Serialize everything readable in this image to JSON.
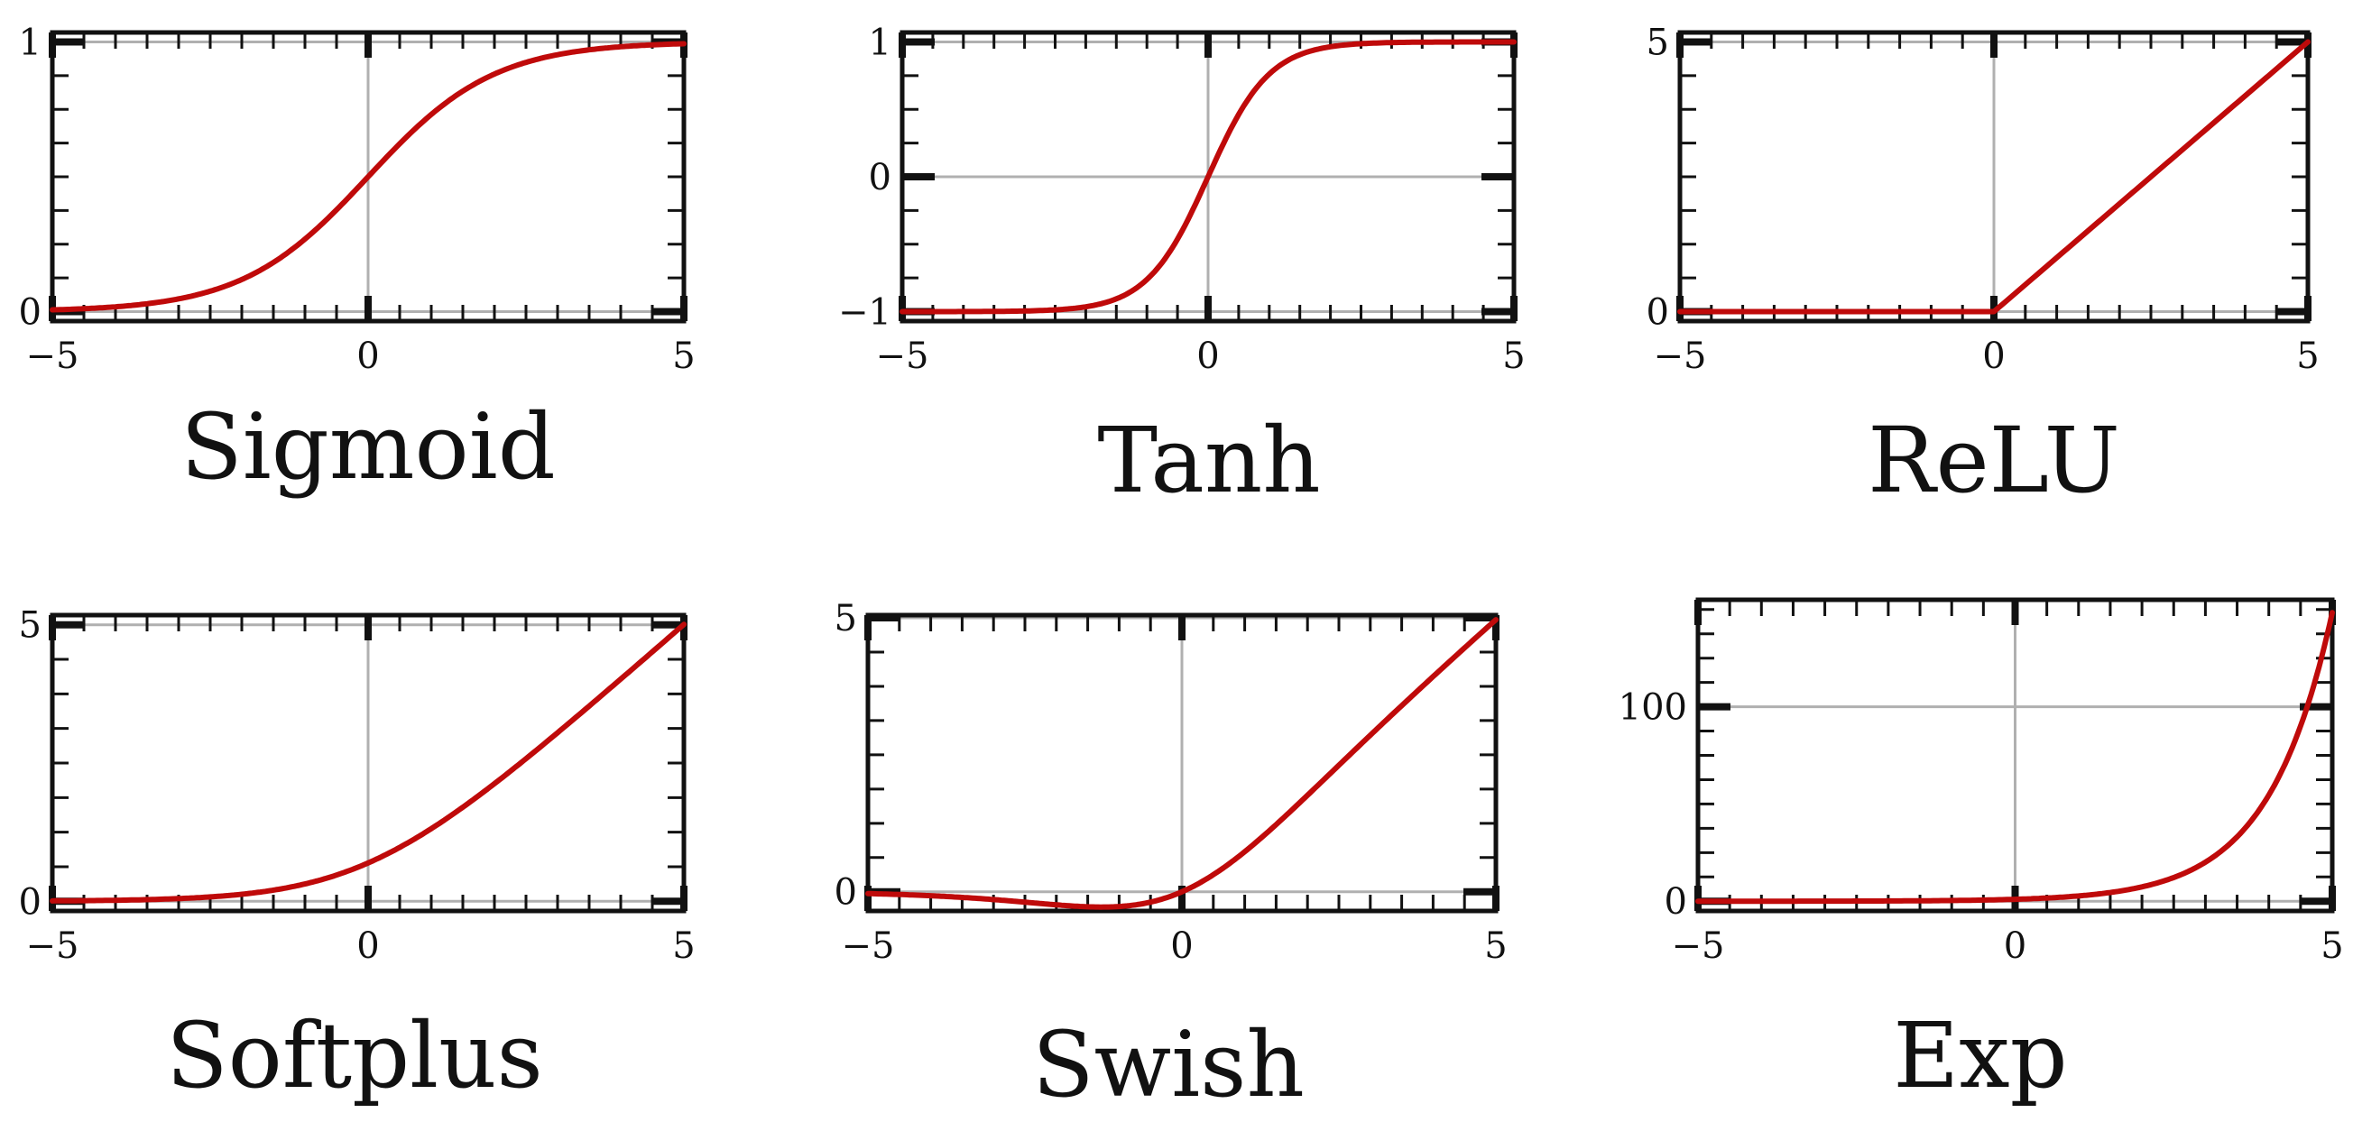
{
  "colors": {
    "curve": "#bf0a0a"
  },
  "chart_data": [
    {
      "type": "line",
      "title": "Sigmoid",
      "function": "sigmoid",
      "xlim": [
        -5,
        5
      ],
      "ylim": [
        -0.035,
        1.035
      ],
      "xticks": [
        {
          "value": -5,
          "label": "−5"
        },
        {
          "value": 0,
          "label": "0"
        },
        {
          "value": 5,
          "label": "5"
        }
      ],
      "yticks": [
        {
          "value": 0,
          "label": "0"
        },
        {
          "value": 1,
          "label": "1"
        }
      ],
      "yminor_step": 0.125,
      "series": [
        {
          "x": [
            -5,
            -4,
            -3,
            -2,
            -1,
            0,
            1,
            2,
            3,
            4,
            5
          ],
          "y": [
            0.007,
            0.018,
            0.047,
            0.119,
            0.269,
            0.5,
            0.731,
            0.881,
            0.953,
            0.982,
            0.993
          ]
        }
      ]
    },
    {
      "type": "line",
      "title": "Tanh",
      "function": "tanh",
      "xlim": [
        -5,
        5
      ],
      "ylim": [
        -1.07,
        1.07
      ],
      "xticks": [
        {
          "value": -5,
          "label": "−5"
        },
        {
          "value": 0,
          "label": "0"
        },
        {
          "value": 5,
          "label": "5"
        }
      ],
      "yticks": [
        {
          "value": -1,
          "label": "−1"
        },
        {
          "value": 0,
          "label": "0"
        },
        {
          "value": 1,
          "label": "1"
        }
      ],
      "yminor_step": 0.25,
      "series": [
        {
          "x": [
            -5,
            -4,
            -3,
            -2,
            -1,
            0,
            1,
            2,
            3,
            4,
            5
          ],
          "y": [
            -1.0,
            -0.999,
            -0.995,
            -0.964,
            -0.762,
            0,
            0.762,
            0.964,
            0.995,
            0.999,
            1.0
          ]
        }
      ]
    },
    {
      "type": "line",
      "title": "ReLU",
      "function": "relu",
      "xlim": [
        -5,
        5
      ],
      "ylim": [
        -0.175,
        5.175
      ],
      "xticks": [
        {
          "value": -5,
          "label": "−5"
        },
        {
          "value": 0,
          "label": "0"
        },
        {
          "value": 5,
          "label": "5"
        }
      ],
      "yticks": [
        {
          "value": 0,
          "label": "0"
        },
        {
          "value": 5,
          "label": "5"
        }
      ],
      "yminor_step": 0.625,
      "series": [
        {
          "x": [
            -5,
            -4,
            -3,
            -2,
            -1,
            0,
            1,
            2,
            3,
            4,
            5
          ],
          "y": [
            0,
            0,
            0,
            0,
            0,
            0,
            1,
            2,
            3,
            4,
            5
          ]
        }
      ]
    },
    {
      "type": "line",
      "title": "Softplus",
      "function": "softplus",
      "xlim": [
        -5,
        5
      ],
      "ylim": [
        -0.175,
        5.175
      ],
      "xticks": [
        {
          "value": -5,
          "label": "−5"
        },
        {
          "value": 0,
          "label": "0"
        },
        {
          "value": 5,
          "label": "5"
        }
      ],
      "yticks": [
        {
          "value": 0,
          "label": "0"
        },
        {
          "value": 5,
          "label": "5"
        }
      ],
      "yminor_step": 0.625,
      "series": [
        {
          "x": [
            -5,
            -4,
            -3,
            -2,
            -1,
            0,
            1,
            2,
            3,
            4,
            5
          ],
          "y": [
            0.007,
            0.018,
            0.049,
            0.127,
            0.313,
            0.693,
            1.313,
            2.127,
            3.049,
            4.018,
            5.007
          ]
        }
      ]
    },
    {
      "type": "line",
      "title": "Swish",
      "function": "swish",
      "xlim": [
        -5,
        5
      ],
      "ylim": [
        -0.35,
        5.05
      ],
      "xticks": [
        {
          "value": -5,
          "label": "−5"
        },
        {
          "value": 0,
          "label": "0"
        },
        {
          "value": 5,
          "label": "5"
        }
      ],
      "yticks": [
        {
          "value": 0,
          "label": "0"
        },
        {
          "value": 5,
          "label": "5"
        }
      ],
      "yminor_step": 0.625,
      "series": [
        {
          "x": [
            -5,
            -4,
            -3,
            -2,
            -1,
            0,
            1,
            2,
            3,
            4,
            5
          ],
          "y": [
            -0.033,
            -0.072,
            -0.142,
            -0.238,
            -0.269,
            0,
            0.731,
            1.762,
            2.858,
            3.928,
            4.967
          ]
        }
      ]
    },
    {
      "type": "line",
      "title": "Exp",
      "function": "exp",
      "xlim": [
        -5,
        5
      ],
      "ylim": [
        -5,
        155
      ],
      "xticks": [
        {
          "value": -5,
          "label": "−5"
        },
        {
          "value": 0,
          "label": "0"
        },
        {
          "value": 5,
          "label": "5"
        }
      ],
      "yticks": [
        {
          "value": 0,
          "label": "0"
        },
        {
          "value": 100,
          "label": "100"
        }
      ],
      "yminor_step": 12.5,
      "series": [
        {
          "x": [
            -5,
            -4,
            -3,
            -2,
            -1,
            0,
            1,
            2,
            3,
            4,
            4.5,
            5
          ],
          "y": [
            0.007,
            0.018,
            0.05,
            0.135,
            0.368,
            1,
            2.718,
            7.389,
            20.09,
            54.6,
            90.0,
            148.4
          ]
        }
      ]
    }
  ]
}
